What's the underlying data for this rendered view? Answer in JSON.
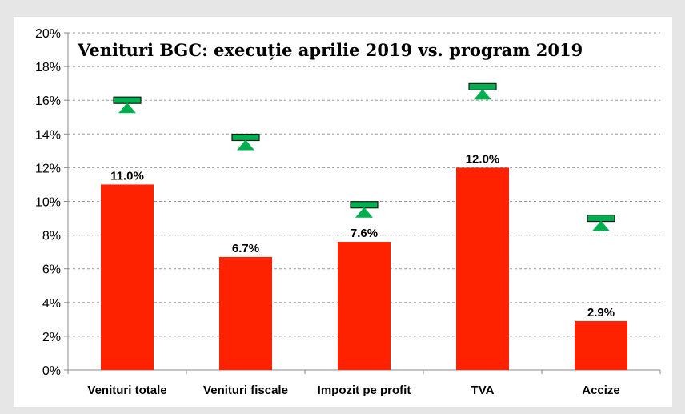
{
  "chart_data": {
    "type": "bar",
    "title": "Venituri BGC: execuție aprilie 2019 vs. program 2019",
    "xlabel": "",
    "ylabel": "",
    "ylim": [
      0,
      20
    ],
    "yticks": [
      "0%",
      "2%",
      "4%",
      "6%",
      "8%",
      "10%",
      "12%",
      "14%",
      "16%",
      "18%",
      "20%"
    ],
    "grid": true,
    "categories": [
      "Venituri totale",
      "Venituri fiscale",
      "Impozit pe profit",
      "TVA",
      "Accize"
    ],
    "series": [
      {
        "values": [
          11.0,
          6.7,
          7.6,
          12.0,
          2.9
        ],
        "labels": [
          "11.0%",
          "6.7%",
          "7.6%",
          "12.0%",
          "2.9%"
        ],
        "color": "#ff2200"
      },
      {
        "values": [
          16.0,
          13.8,
          9.8,
          16.8,
          9.0
        ],
        "color": "#00b050",
        "marker": "bar-with-up-triangle"
      }
    ]
  }
}
